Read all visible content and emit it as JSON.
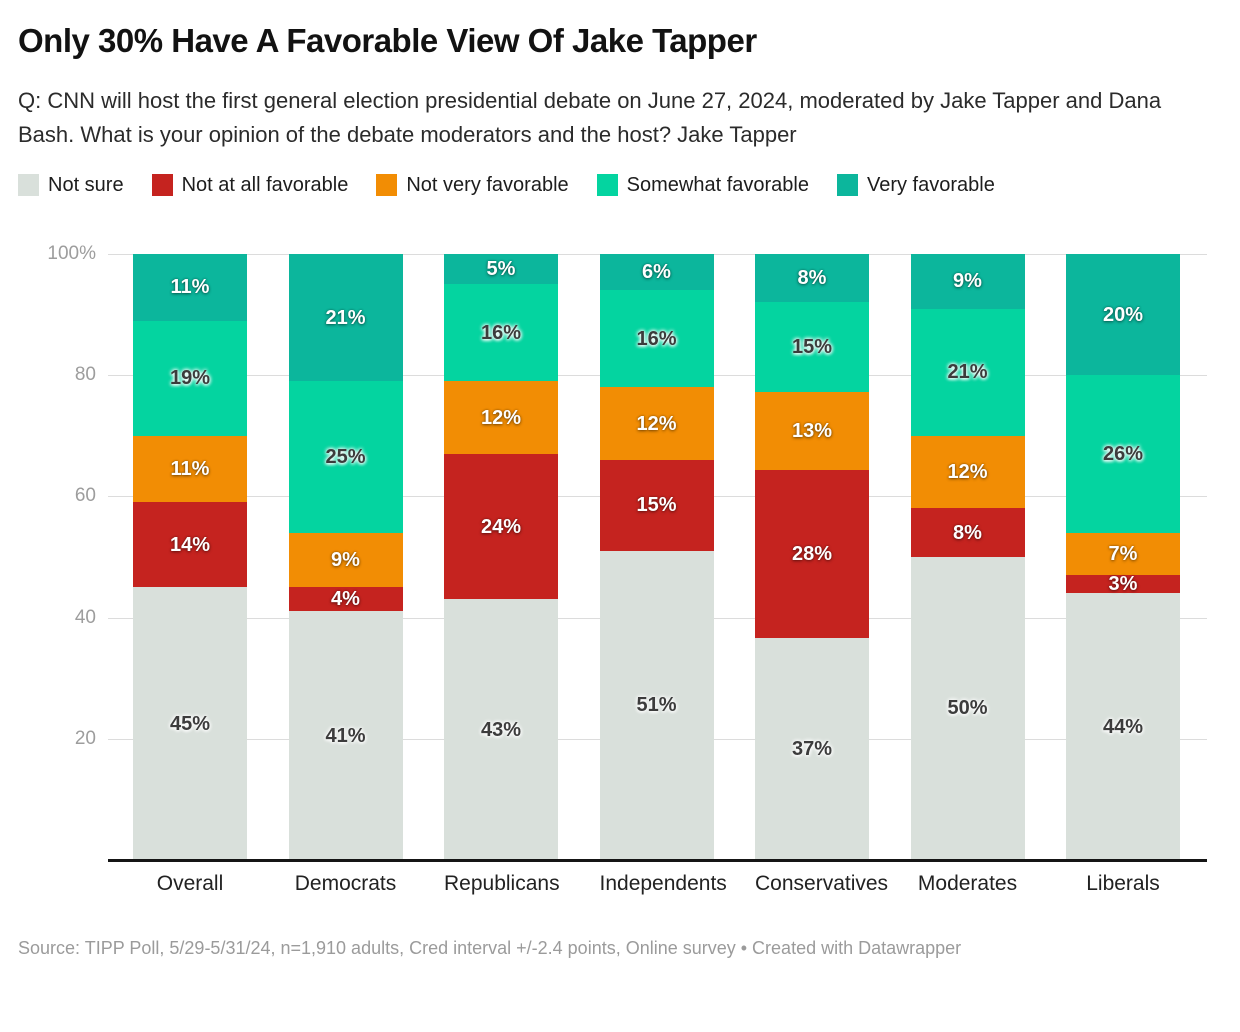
{
  "header": {
    "title": "Only 30% Have A Favorable View Of Jake Tapper",
    "description": "Q: CNN will host the first general election presidential debate on June 27, 2024, moderated by Jake Tapper and Dana Bash. What is your opinion of the debate moderators and the host? Jake Tapper"
  },
  "chart_data": {
    "type": "bar",
    "stacked": true,
    "orientation": "vertical",
    "value_suffix": "%",
    "categories": [
      "Overall",
      "Democrats",
      "Republicans",
      "Independents",
      "Conservatives",
      "Moderates",
      "Liberals"
    ],
    "series": [
      {
        "name": "Not sure",
        "color": "#d9e0db",
        "label_style": "dark",
        "values": [
          45,
          41,
          43,
          51,
          37,
          50,
          44
        ]
      },
      {
        "name": "Not at all favorable",
        "color": "#c5231f",
        "label_style": "light",
        "values": [
          14,
          4,
          24,
          15,
          28,
          8,
          3
        ]
      },
      {
        "name": "Not very favorable",
        "color": "#f28d04",
        "label_style": "light",
        "values": [
          11,
          9,
          12,
          12,
          13,
          12,
          7
        ]
      },
      {
        "name": "Somewhat favorable",
        "color": "#04d4a0",
        "label_style": "dark",
        "values": [
          19,
          25,
          16,
          16,
          15,
          21,
          26
        ]
      },
      {
        "name": "Very favorable",
        "color": "#0cb69c",
        "label_style": "light",
        "values": [
          11,
          21,
          5,
          6,
          8,
          9,
          20
        ]
      }
    ],
    "y_axis": {
      "range": [
        0,
        100
      ],
      "tick_values": [
        20,
        40,
        60,
        80,
        100
      ],
      "tick_labels": [
        "20",
        "40",
        "60",
        "80",
        "100%"
      ],
      "grid": true
    },
    "legend_position": "top"
  },
  "footer": {
    "source": "Source: TIPP Poll, 5/29-5/31/24, n=1,910 adults, Cred interval +/-2.4 points, Online survey • Created with Datawrapper"
  }
}
